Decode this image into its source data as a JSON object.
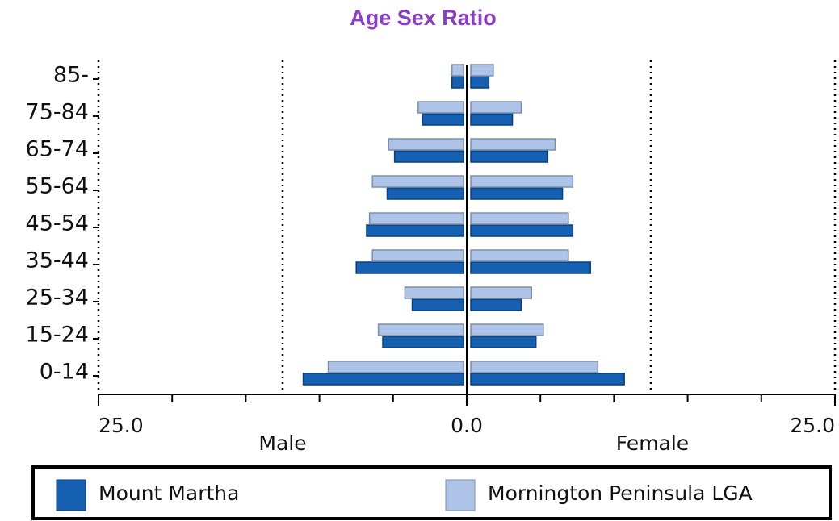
{
  "chart_data": {
    "type": "pyramid",
    "title": "Age Sex Ratio",
    "categories": [
      "85-",
      "75-84",
      "65-74",
      "55-64",
      "45-54",
      "35-44",
      "25-34",
      "15-24",
      "0-14"
    ],
    "left_label": "Male",
    "right_label": "Female",
    "series": [
      {
        "name": "Mount Martha",
        "color": "#1560b0",
        "male": [
          1.0,
          3.0,
          4.9,
          5.4,
          6.8,
          7.5,
          3.7,
          5.7,
          11.1
        ],
        "female": [
          1.5,
          3.1,
          5.5,
          6.5,
          7.2,
          8.4,
          3.7,
          4.7,
          10.7
        ]
      },
      {
        "name": "Mornington Peninsula LGA",
        "color": "#adc3e8",
        "male": [
          1.0,
          3.3,
          5.3,
          6.4,
          6.6,
          6.4,
          4.2,
          6.0,
          9.4
        ],
        "female": [
          1.8,
          3.7,
          6.0,
          7.2,
          6.9,
          6.9,
          4.4,
          5.2,
          8.9
        ]
      }
    ],
    "xlim": [
      -25,
      25
    ],
    "xticks": [
      {
        "value": -25,
        "label": "25.0"
      },
      {
        "value": 0,
        "label": "0.0"
      },
      {
        "value": 25,
        "label": "25.0"
      }
    ],
    "xminorticks": [
      -20,
      -15,
      -10,
      -5,
      5,
      10,
      15,
      20
    ],
    "xgrid": [
      -25,
      -12.5,
      12.5,
      25
    ],
    "legend": "bottom"
  }
}
